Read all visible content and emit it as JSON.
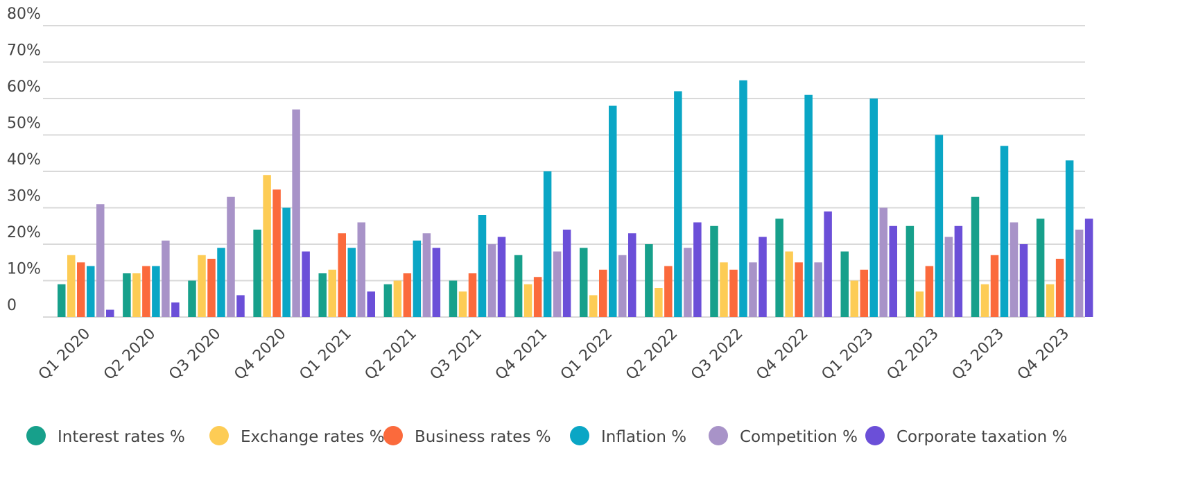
{
  "chart_data": {
    "type": "bar",
    "categories": [
      "Q1 2020",
      "Q2 2020",
      "Q3 2020",
      "Q4 2020",
      "Q1 2021",
      "Q2 2021",
      "Q3 2021",
      "Q4 2021",
      "Q1 2022",
      "Q2 2022",
      "Q3 2022",
      "Q4 2022",
      "Q1 2023",
      "Q2 2023",
      "Q3 2023",
      "Q4 2023"
    ],
    "series": [
      {
        "name": "Interest rates %",
        "color": "#17a08b",
        "values": [
          9,
          12,
          10,
          24,
          12,
          9,
          10,
          17,
          19,
          20,
          25,
          27,
          18,
          25,
          33,
          27
        ]
      },
      {
        "name": "Exchange rates %",
        "color": "#fdcc55",
        "values": [
          17,
          12,
          17,
          39,
          13,
          10,
          7,
          9,
          6,
          8,
          15,
          18,
          10,
          7,
          9,
          9
        ]
      },
      {
        "name": "Business rates %",
        "color": "#fb6a3c",
        "values": [
          15,
          14,
          16,
          35,
          23,
          12,
          12,
          11,
          13,
          14,
          13,
          15,
          13,
          14,
          17,
          16
        ]
      },
      {
        "name": "Inflation %",
        "color": "#0aa6c5",
        "values": [
          14,
          14,
          19,
          30,
          19,
          21,
          28,
          40,
          58,
          62,
          65,
          61,
          60,
          50,
          47,
          43
        ]
      },
      {
        "name": "Competition %",
        "color": "#a893c8",
        "values": [
          31,
          21,
          33,
          57,
          26,
          23,
          20,
          18,
          17,
          19,
          15,
          15,
          30,
          22,
          26,
          24
        ]
      },
      {
        "name": "Corporate taxation %",
        "color": "#6b4fd8",
        "values": [
          2,
          4,
          6,
          18,
          7,
          19,
          22,
          24,
          23,
          26,
          22,
          29,
          25,
          25,
          20,
          27
        ]
      }
    ],
    "ylim": [
      0,
      80
    ],
    "yticks": [
      0,
      {
        "value": 10,
        "label": "10%"
      },
      {
        "value": 20,
        "label": "20%"
      },
      {
        "value": 30,
        "label": "30%"
      },
      {
        "value": 40,
        "label": "40%"
      },
      {
        "value": 50,
        "label": "50%"
      },
      {
        "value": 60,
        "label": "60%"
      },
      {
        "value": 70,
        "label": "70%"
      },
      {
        "value": 80,
        "label": "80%"
      }
    ],
    "grid": true
  }
}
